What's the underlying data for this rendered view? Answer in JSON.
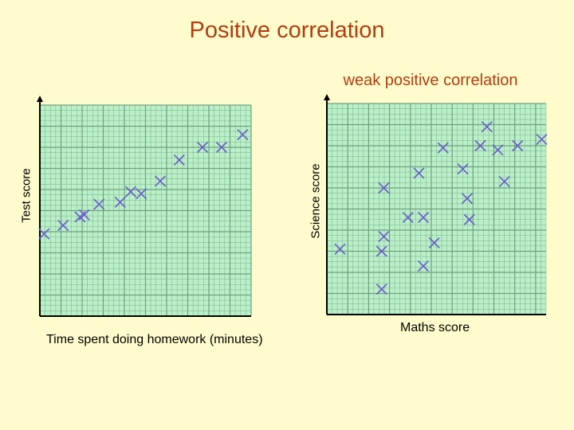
{
  "title": "Positive correlation",
  "subtitle": "weak positive correlation",
  "colors": {
    "title": "#b33c10",
    "grid_fill": "#b9f0c8",
    "grid_line": "#6fa17f",
    "marker": "#6a5acd",
    "axis": "#000000"
  },
  "chart_data": [
    {
      "type": "scatter",
      "xlabel": "Time spent doing homework (minutes)",
      "ylabel": "Test score",
      "xlim": [
        0,
        10
      ],
      "ylim": [
        0,
        10
      ],
      "grid": true,
      "marker": "x",
      "points": [
        {
          "x": 0.2,
          "y": 3.9
        },
        {
          "x": 1.1,
          "y": 4.3
        },
        {
          "x": 1.9,
          "y": 4.7
        },
        {
          "x": 2.1,
          "y": 4.8
        },
        {
          "x": 2.8,
          "y": 5.3
        },
        {
          "x": 3.8,
          "y": 5.4
        },
        {
          "x": 4.3,
          "y": 5.9
        },
        {
          "x": 4.8,
          "y": 5.8
        },
        {
          "x": 5.7,
          "y": 6.4
        },
        {
          "x": 6.6,
          "y": 7.4
        },
        {
          "x": 7.7,
          "y": 8.0
        },
        {
          "x": 8.6,
          "y": 8.0
        },
        {
          "x": 9.6,
          "y": 8.6
        }
      ]
    },
    {
      "type": "scatter",
      "xlabel": "Maths score",
      "ylabel": "Science score",
      "xlim": [
        0,
        10
      ],
      "ylim": [
        0,
        10
      ],
      "grid": true,
      "marker": "x",
      "points": [
        {
          "x": 0.6,
          "y": 3.1
        },
        {
          "x": 2.5,
          "y": 1.2
        },
        {
          "x": 2.5,
          "y": 3.0
        },
        {
          "x": 2.6,
          "y": 3.7
        },
        {
          "x": 2.6,
          "y": 6.0
        },
        {
          "x": 3.7,
          "y": 4.6
        },
        {
          "x": 4.4,
          "y": 4.6
        },
        {
          "x": 4.2,
          "y": 6.7
        },
        {
          "x": 4.4,
          "y": 2.3
        },
        {
          "x": 4.9,
          "y": 3.4
        },
        {
          "x": 5.3,
          "y": 7.9
        },
        {
          "x": 6.2,
          "y": 6.9
        },
        {
          "x": 6.4,
          "y": 5.5
        },
        {
          "x": 6.5,
          "y": 4.5
        },
        {
          "x": 7.0,
          "y": 8.0
        },
        {
          "x": 7.3,
          "y": 8.9
        },
        {
          "x": 7.8,
          "y": 7.8
        },
        {
          "x": 8.1,
          "y": 6.3
        },
        {
          "x": 8.7,
          "y": 8.0
        },
        {
          "x": 9.8,
          "y": 8.3
        }
      ]
    }
  ]
}
